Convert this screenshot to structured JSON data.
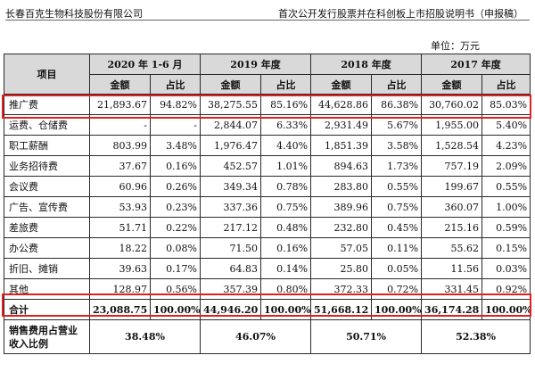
{
  "header": {
    "company": "长春百克生物科技股份有限公司",
    "doc_title": "首次公开发行股票并在科创板上市招股说明书（申报稿）"
  },
  "unit": "单位：万元",
  "table": {
    "item_header": "项目",
    "periods": [
      "2020 年 1-6 月",
      "2019 年度",
      "2018 年度",
      "2017 年度"
    ],
    "sub_headers": [
      "金额",
      "占比"
    ],
    "rows": [
      {
        "name": "推广费",
        "cells": [
          "21,893.67",
          "94.82%",
          "38,275.55",
          "85.16%",
          "44,628.86",
          "86.38%",
          "30,760.02",
          "85.03%"
        ]
      },
      {
        "name": "运费、仓储费",
        "cells": [
          "-",
          "-",
          "2,844.07",
          "6.33%",
          "2,931.49",
          "5.67%",
          "1,955.00",
          "5.40%"
        ]
      },
      {
        "name": "职工薪酬",
        "cells": [
          "803.99",
          "3.48%",
          "1,976.47",
          "4.40%",
          "1,851.39",
          "3.58%",
          "1,528.54",
          "4.23%"
        ]
      },
      {
        "name": "业务招待费",
        "cells": [
          "37.67",
          "0.16%",
          "452.57",
          "1.01%",
          "894.63",
          "1.73%",
          "757.19",
          "2.09%"
        ]
      },
      {
        "name": "会议费",
        "cells": [
          "60.96",
          "0.26%",
          "349.34",
          "0.78%",
          "283.80",
          "0.55%",
          "199.67",
          "0.55%"
        ]
      },
      {
        "name": "广告、宣传费",
        "cells": [
          "53.93",
          "0.23%",
          "337.36",
          "0.75%",
          "389.96",
          "0.75%",
          "360.07",
          "1.00%"
        ]
      },
      {
        "name": "差旅费",
        "cells": [
          "51.71",
          "0.22%",
          "217.12",
          "0.48%",
          "232.80",
          "0.45%",
          "215.16",
          "0.59%"
        ]
      },
      {
        "name": "办公费",
        "cells": [
          "18.22",
          "0.08%",
          "71.50",
          "0.16%",
          "57.05",
          "0.11%",
          "55.62",
          "0.15%"
        ]
      },
      {
        "name": "折旧、摊销",
        "cells": [
          "39.63",
          "0.17%",
          "64.83",
          "0.14%",
          "25.80",
          "0.05%",
          "11.56",
          "0.03%"
        ]
      },
      {
        "name": "其他",
        "cells": [
          "128.97",
          "0.56%",
          "357.39",
          "0.80%",
          "372.33",
          "0.72%",
          "331.45",
          "0.92%"
        ]
      }
    ],
    "total": {
      "name": "合计",
      "cells": [
        "23,088.75",
        "100.00%",
        "44,946.20",
        "100.00%",
        "51,668.12",
        "100.00%",
        "36,174.28",
        "100.00%"
      ]
    },
    "ratio": {
      "name": "销售费用占营业收入比例",
      "cells": [
        "38.48%",
        "46.07%",
        "50.71%",
        "52.38%"
      ]
    }
  },
  "highlight_color": "#e02020"
}
